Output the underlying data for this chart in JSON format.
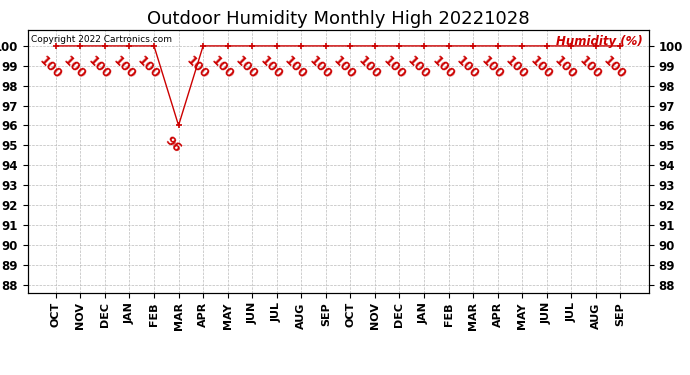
{
  "title": "Outdoor Humidity Monthly High 20221028",
  "legend_label": "Humidity (%)",
  "copyright": "Copyright 2022 Cartronics.com",
  "x_labels": [
    "OCT",
    "NOV",
    "DEC",
    "JAN",
    "FEB",
    "MAR",
    "APR",
    "MAY",
    "JUN",
    "JUL",
    "AUG",
    "SEP",
    "OCT",
    "NOV",
    "DEC",
    "JAN",
    "FEB",
    "MAR",
    "APR",
    "MAY",
    "JUN",
    "JUL",
    "AUG",
    "SEP"
  ],
  "y_values": [
    100,
    100,
    100,
    100,
    100,
    96,
    100,
    100,
    100,
    100,
    100,
    100,
    100,
    100,
    100,
    100,
    100,
    100,
    100,
    100,
    100,
    100,
    100,
    100
  ],
  "ylim_min": 87.6,
  "ylim_max": 100.8,
  "yticks": [
    88,
    89,
    90,
    91,
    92,
    93,
    94,
    95,
    96,
    97,
    98,
    99,
    100
  ],
  "line_color": "#cc0000",
  "marker_color": "#cc0000",
  "label_color": "#cc0000",
  "grid_color": "#bbbbbb",
  "bg_color": "#ffffff",
  "title_fontsize": 13,
  "tick_fontsize": 8.5,
  "label_fontsize": 8,
  "data_label_fontsize": 9,
  "copyright_fontsize": 6.5
}
